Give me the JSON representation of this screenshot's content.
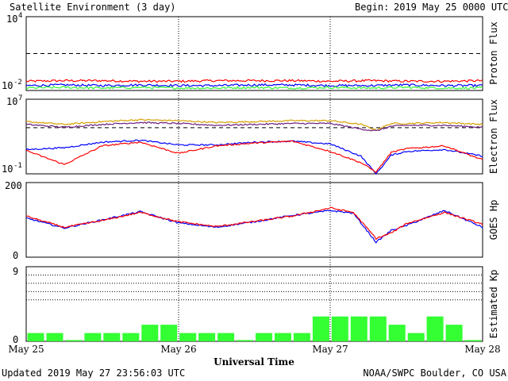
{
  "header": {
    "title": "Satellite Environment (3 day)",
    "begin_label": "Begin:",
    "begin_value": "2019 May 25 0000 UTC"
  },
  "footer": {
    "updated": "Updated 2019 May 27 23:56:03 UTC",
    "credit": "NOAA/SWPC Boulder, CO USA",
    "xlabel": "Universal Time"
  },
  "x_ticks": [
    "May 25",
    "May 26",
    "May 27",
    "May 28"
  ],
  "colors": {
    "red": "#ff0000",
    "blue": "#0000ff",
    "green": "#33ff33",
    "orange": "#d4a000",
    "purple": "#6a2080",
    "kp_bar": "#33ff33"
  },
  "chart_data": [
    {
      "type": "line",
      "name": "proton-flux",
      "ylabel": "Proton Flux",
      "yscale": "log",
      "ylim_exp": [
        -2,
        4
      ],
      "ytick_labels": [
        {
          "base": "10",
          "exp": "4"
        },
        {
          "base": "10",
          "exp": "-2"
        }
      ],
      "threshold_exp": 1,
      "x": [
        0,
        0.25,
        0.5,
        0.75,
        1,
        1.25,
        1.5,
        1.75,
        2,
        2.25,
        2.5,
        2.75,
        3
      ],
      "series": [
        {
          "color": "red",
          "values_exp": [
            -1.25,
            -1.2,
            -1.2,
            -1.25,
            -1.25,
            -1.2,
            -1.2,
            -1.2,
            -1.25,
            -1.2,
            -1.25,
            -1.25,
            -1.2
          ]
        },
        {
          "color": "blue",
          "values_exp": [
            -1.6,
            -1.55,
            -1.6,
            -1.55,
            -1.6,
            -1.6,
            -1.55,
            -1.55,
            -1.6,
            -1.6,
            -1.55,
            -1.6,
            -1.6
          ]
        },
        {
          "color": "green",
          "values_exp": [
            -1.8,
            -1.75,
            -1.8,
            -1.75,
            -1.8,
            -1.8,
            -1.75,
            -1.8,
            -1.75,
            -1.8,
            -1.75,
            -1.8,
            -1.8
          ]
        }
      ]
    },
    {
      "type": "line",
      "name": "electron-flux",
      "ylabel": "Electron Flux",
      "yscale": "log",
      "ylim_exp": [
        -1,
        7
      ],
      "ytick_labels": [
        {
          "base": "10",
          "exp": "7"
        },
        {
          "base": "10",
          "exp": "-1"
        }
      ],
      "threshold_exp": 3.95,
      "x": [
        0,
        0.25,
        0.5,
        0.75,
        1,
        1.25,
        1.5,
        1.75,
        2,
        2.2,
        2.3,
        2.4,
        2.5,
        2.75,
        3
      ],
      "series": [
        {
          "color": "orange",
          "values_exp": [
            4.6,
            4.3,
            4.6,
            4.8,
            4.7,
            4.5,
            4.6,
            4.7,
            4.7,
            4.3,
            3.7,
            4.4,
            4.4,
            4.5,
            4.3
          ]
        },
        {
          "color": "purple",
          "values_exp": [
            4.3,
            4.0,
            4.3,
            4.5,
            4.4,
            4.2,
            4.3,
            4.4,
            4.4,
            3.8,
            3.6,
            4.1,
            4.2,
            4.2,
            4.0
          ]
        },
        {
          "color": "blue",
          "values_exp": [
            1.6,
            1.8,
            2.4,
            2.6,
            2.1,
            2.1,
            2.4,
            2.5,
            2.2,
            0.9,
            -1.0,
            1.0,
            1.4,
            1.6,
            0.9
          ]
        },
        {
          "color": "red",
          "values_exp": [
            1.5,
            0.0,
            2.0,
            2.4,
            1.2,
            2.0,
            2.3,
            2.5,
            1.4,
            0.2,
            -0.8,
            1.3,
            1.7,
            2.0,
            0.5
          ]
        }
      ]
    },
    {
      "type": "line",
      "name": "goes-hp",
      "ylabel": "GOES Hp",
      "ylim": [
        0,
        200
      ],
      "ytick_labels": [
        "200",
        "0"
      ],
      "x": [
        0,
        0.25,
        0.5,
        0.75,
        1,
        1.25,
        1.5,
        1.75,
        2,
        2.15,
        2.3,
        2.4,
        2.5,
        2.75,
        3
      ],
      "series": [
        {
          "color": "blue",
          "values": [
            105,
            78,
            100,
            122,
            92,
            80,
            95,
            112,
            125,
            118,
            40,
            72,
            85,
            125,
            80
          ]
        },
        {
          "color": "red",
          "values": [
            110,
            80,
            98,
            120,
            95,
            82,
            96,
            110,
            132,
            120,
            50,
            65,
            90,
            120,
            88
          ]
        }
      ]
    },
    {
      "type": "bar",
      "name": "estimated-kp",
      "ylabel": "Estimated Kp",
      "ylim": [
        0,
        9
      ],
      "ytick_labels": [
        "9",
        "0"
      ],
      "grid_lines": [
        5,
        6,
        7,
        8,
        9
      ],
      "values": [
        1,
        1,
        0,
        1,
        1,
        1,
        2,
        2,
        1,
        1,
        1,
        0,
        1,
        1,
        1,
        3,
        3,
        3,
        3,
        2,
        1,
        3,
        2,
        0
      ]
    }
  ]
}
